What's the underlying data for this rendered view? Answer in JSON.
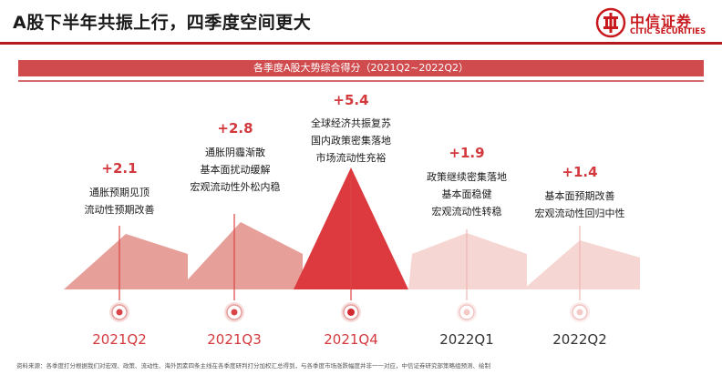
{
  "header": {
    "title": "A股下半年共振上行，四季度空间更大",
    "logo_cn": "中信证券",
    "logo_en": "CITIC SECURITIES"
  },
  "banner": {
    "text": "各季度A股大势综合得分（2021Q2~2022Q2）"
  },
  "quarters": [
    {
      "label": "2021Q2",
      "score": "+2.1",
      "lines": [
        "通胀预期见顶",
        "流动性预期改善"
      ],
      "status": "past"
    },
    {
      "label": "2021Q3",
      "score": "+2.8",
      "lines": [
        "通胀阴霾渐散",
        "基本面扰动缓解",
        "宏观流动性外松内稳"
      ],
      "status": "past"
    },
    {
      "label": "2021Q4",
      "score": "+5.4",
      "lines": [
        "全球经济共振复苏",
        "国内政策密集落地",
        "市场流动性充裕"
      ],
      "status": "highlight"
    },
    {
      "label": "2022Q1",
      "score": "+1.9",
      "lines": [
        "政策继续密集落地",
        "基本面稳健",
        "宏观流动性转稳"
      ],
      "status": "future"
    },
    {
      "label": "2022Q2",
      "score": "+1.4",
      "lines": [
        "基本面预期改善",
        "宏观流动性回归中性"
      ],
      "status": "future"
    }
  ],
  "colors": {
    "brand": "#c8191e",
    "past_fill": "#e79f9a",
    "highlight_fill": "#dc3a3f",
    "future_fill": "#f6d6d3",
    "score_text": "#d2383c"
  },
  "footnote": "资料来源：各季度打分根据我们对宏观、政策、流动性、海外因素四条主线在各季度研判打分加权汇总得到，与各季度市场涨跌幅度并非一一对应，中信证券研究部策略组预测、绘制"
}
